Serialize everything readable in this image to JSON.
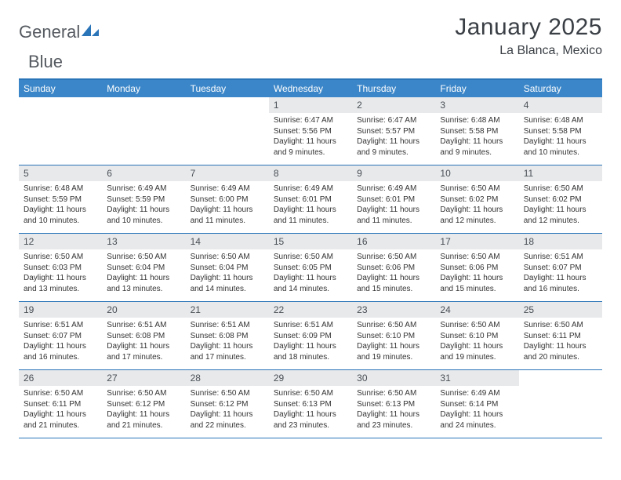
{
  "logo": {
    "text1": "General",
    "text2": "Blue"
  },
  "title": "January 2025",
  "location": "La Blanca, Mexico",
  "colors": {
    "header_bg": "#3b86c8",
    "border": "#2a74b8",
    "daynum_bg": "#e7e9eb",
    "text": "#333333"
  },
  "dow": [
    "Sunday",
    "Monday",
    "Tuesday",
    "Wednesday",
    "Thursday",
    "Friday",
    "Saturday"
  ],
  "weeks": [
    [
      {
        "n": "",
        "sr": "",
        "ss": "",
        "d1": "",
        "d2": ""
      },
      {
        "n": "",
        "sr": "",
        "ss": "",
        "d1": "",
        "d2": ""
      },
      {
        "n": "",
        "sr": "",
        "ss": "",
        "d1": "",
        "d2": ""
      },
      {
        "n": "1",
        "sr": "Sunrise: 6:47 AM",
        "ss": "Sunset: 5:56 PM",
        "d1": "Daylight: 11 hours",
        "d2": "and 9 minutes."
      },
      {
        "n": "2",
        "sr": "Sunrise: 6:47 AM",
        "ss": "Sunset: 5:57 PM",
        "d1": "Daylight: 11 hours",
        "d2": "and 9 minutes."
      },
      {
        "n": "3",
        "sr": "Sunrise: 6:48 AM",
        "ss": "Sunset: 5:58 PM",
        "d1": "Daylight: 11 hours",
        "d2": "and 9 minutes."
      },
      {
        "n": "4",
        "sr": "Sunrise: 6:48 AM",
        "ss": "Sunset: 5:58 PM",
        "d1": "Daylight: 11 hours",
        "d2": "and 10 minutes."
      }
    ],
    [
      {
        "n": "5",
        "sr": "Sunrise: 6:48 AM",
        "ss": "Sunset: 5:59 PM",
        "d1": "Daylight: 11 hours",
        "d2": "and 10 minutes."
      },
      {
        "n": "6",
        "sr": "Sunrise: 6:49 AM",
        "ss": "Sunset: 5:59 PM",
        "d1": "Daylight: 11 hours",
        "d2": "and 10 minutes."
      },
      {
        "n": "7",
        "sr": "Sunrise: 6:49 AM",
        "ss": "Sunset: 6:00 PM",
        "d1": "Daylight: 11 hours",
        "d2": "and 11 minutes."
      },
      {
        "n": "8",
        "sr": "Sunrise: 6:49 AM",
        "ss": "Sunset: 6:01 PM",
        "d1": "Daylight: 11 hours",
        "d2": "and 11 minutes."
      },
      {
        "n": "9",
        "sr": "Sunrise: 6:49 AM",
        "ss": "Sunset: 6:01 PM",
        "d1": "Daylight: 11 hours",
        "d2": "and 11 minutes."
      },
      {
        "n": "10",
        "sr": "Sunrise: 6:50 AM",
        "ss": "Sunset: 6:02 PM",
        "d1": "Daylight: 11 hours",
        "d2": "and 12 minutes."
      },
      {
        "n": "11",
        "sr": "Sunrise: 6:50 AM",
        "ss": "Sunset: 6:02 PM",
        "d1": "Daylight: 11 hours",
        "d2": "and 12 minutes."
      }
    ],
    [
      {
        "n": "12",
        "sr": "Sunrise: 6:50 AM",
        "ss": "Sunset: 6:03 PM",
        "d1": "Daylight: 11 hours",
        "d2": "and 13 minutes."
      },
      {
        "n": "13",
        "sr": "Sunrise: 6:50 AM",
        "ss": "Sunset: 6:04 PM",
        "d1": "Daylight: 11 hours",
        "d2": "and 13 minutes."
      },
      {
        "n": "14",
        "sr": "Sunrise: 6:50 AM",
        "ss": "Sunset: 6:04 PM",
        "d1": "Daylight: 11 hours",
        "d2": "and 14 minutes."
      },
      {
        "n": "15",
        "sr": "Sunrise: 6:50 AM",
        "ss": "Sunset: 6:05 PM",
        "d1": "Daylight: 11 hours",
        "d2": "and 14 minutes."
      },
      {
        "n": "16",
        "sr": "Sunrise: 6:50 AM",
        "ss": "Sunset: 6:06 PM",
        "d1": "Daylight: 11 hours",
        "d2": "and 15 minutes."
      },
      {
        "n": "17",
        "sr": "Sunrise: 6:50 AM",
        "ss": "Sunset: 6:06 PM",
        "d1": "Daylight: 11 hours",
        "d2": "and 15 minutes."
      },
      {
        "n": "18",
        "sr": "Sunrise: 6:51 AM",
        "ss": "Sunset: 6:07 PM",
        "d1": "Daylight: 11 hours",
        "d2": "and 16 minutes."
      }
    ],
    [
      {
        "n": "19",
        "sr": "Sunrise: 6:51 AM",
        "ss": "Sunset: 6:07 PM",
        "d1": "Daylight: 11 hours",
        "d2": "and 16 minutes."
      },
      {
        "n": "20",
        "sr": "Sunrise: 6:51 AM",
        "ss": "Sunset: 6:08 PM",
        "d1": "Daylight: 11 hours",
        "d2": "and 17 minutes."
      },
      {
        "n": "21",
        "sr": "Sunrise: 6:51 AM",
        "ss": "Sunset: 6:08 PM",
        "d1": "Daylight: 11 hours",
        "d2": "and 17 minutes."
      },
      {
        "n": "22",
        "sr": "Sunrise: 6:51 AM",
        "ss": "Sunset: 6:09 PM",
        "d1": "Daylight: 11 hours",
        "d2": "and 18 minutes."
      },
      {
        "n": "23",
        "sr": "Sunrise: 6:50 AM",
        "ss": "Sunset: 6:10 PM",
        "d1": "Daylight: 11 hours",
        "d2": "and 19 minutes."
      },
      {
        "n": "24",
        "sr": "Sunrise: 6:50 AM",
        "ss": "Sunset: 6:10 PM",
        "d1": "Daylight: 11 hours",
        "d2": "and 19 minutes."
      },
      {
        "n": "25",
        "sr": "Sunrise: 6:50 AM",
        "ss": "Sunset: 6:11 PM",
        "d1": "Daylight: 11 hours",
        "d2": "and 20 minutes."
      }
    ],
    [
      {
        "n": "26",
        "sr": "Sunrise: 6:50 AM",
        "ss": "Sunset: 6:11 PM",
        "d1": "Daylight: 11 hours",
        "d2": "and 21 minutes."
      },
      {
        "n": "27",
        "sr": "Sunrise: 6:50 AM",
        "ss": "Sunset: 6:12 PM",
        "d1": "Daylight: 11 hours",
        "d2": "and 21 minutes."
      },
      {
        "n": "28",
        "sr": "Sunrise: 6:50 AM",
        "ss": "Sunset: 6:12 PM",
        "d1": "Daylight: 11 hours",
        "d2": "and 22 minutes."
      },
      {
        "n": "29",
        "sr": "Sunrise: 6:50 AM",
        "ss": "Sunset: 6:13 PM",
        "d1": "Daylight: 11 hours",
        "d2": "and 23 minutes."
      },
      {
        "n": "30",
        "sr": "Sunrise: 6:50 AM",
        "ss": "Sunset: 6:13 PM",
        "d1": "Daylight: 11 hours",
        "d2": "and 23 minutes."
      },
      {
        "n": "31",
        "sr": "Sunrise: 6:49 AM",
        "ss": "Sunset: 6:14 PM",
        "d1": "Daylight: 11 hours",
        "d2": "and 24 minutes."
      },
      {
        "n": "",
        "sr": "",
        "ss": "",
        "d1": "",
        "d2": ""
      }
    ]
  ]
}
